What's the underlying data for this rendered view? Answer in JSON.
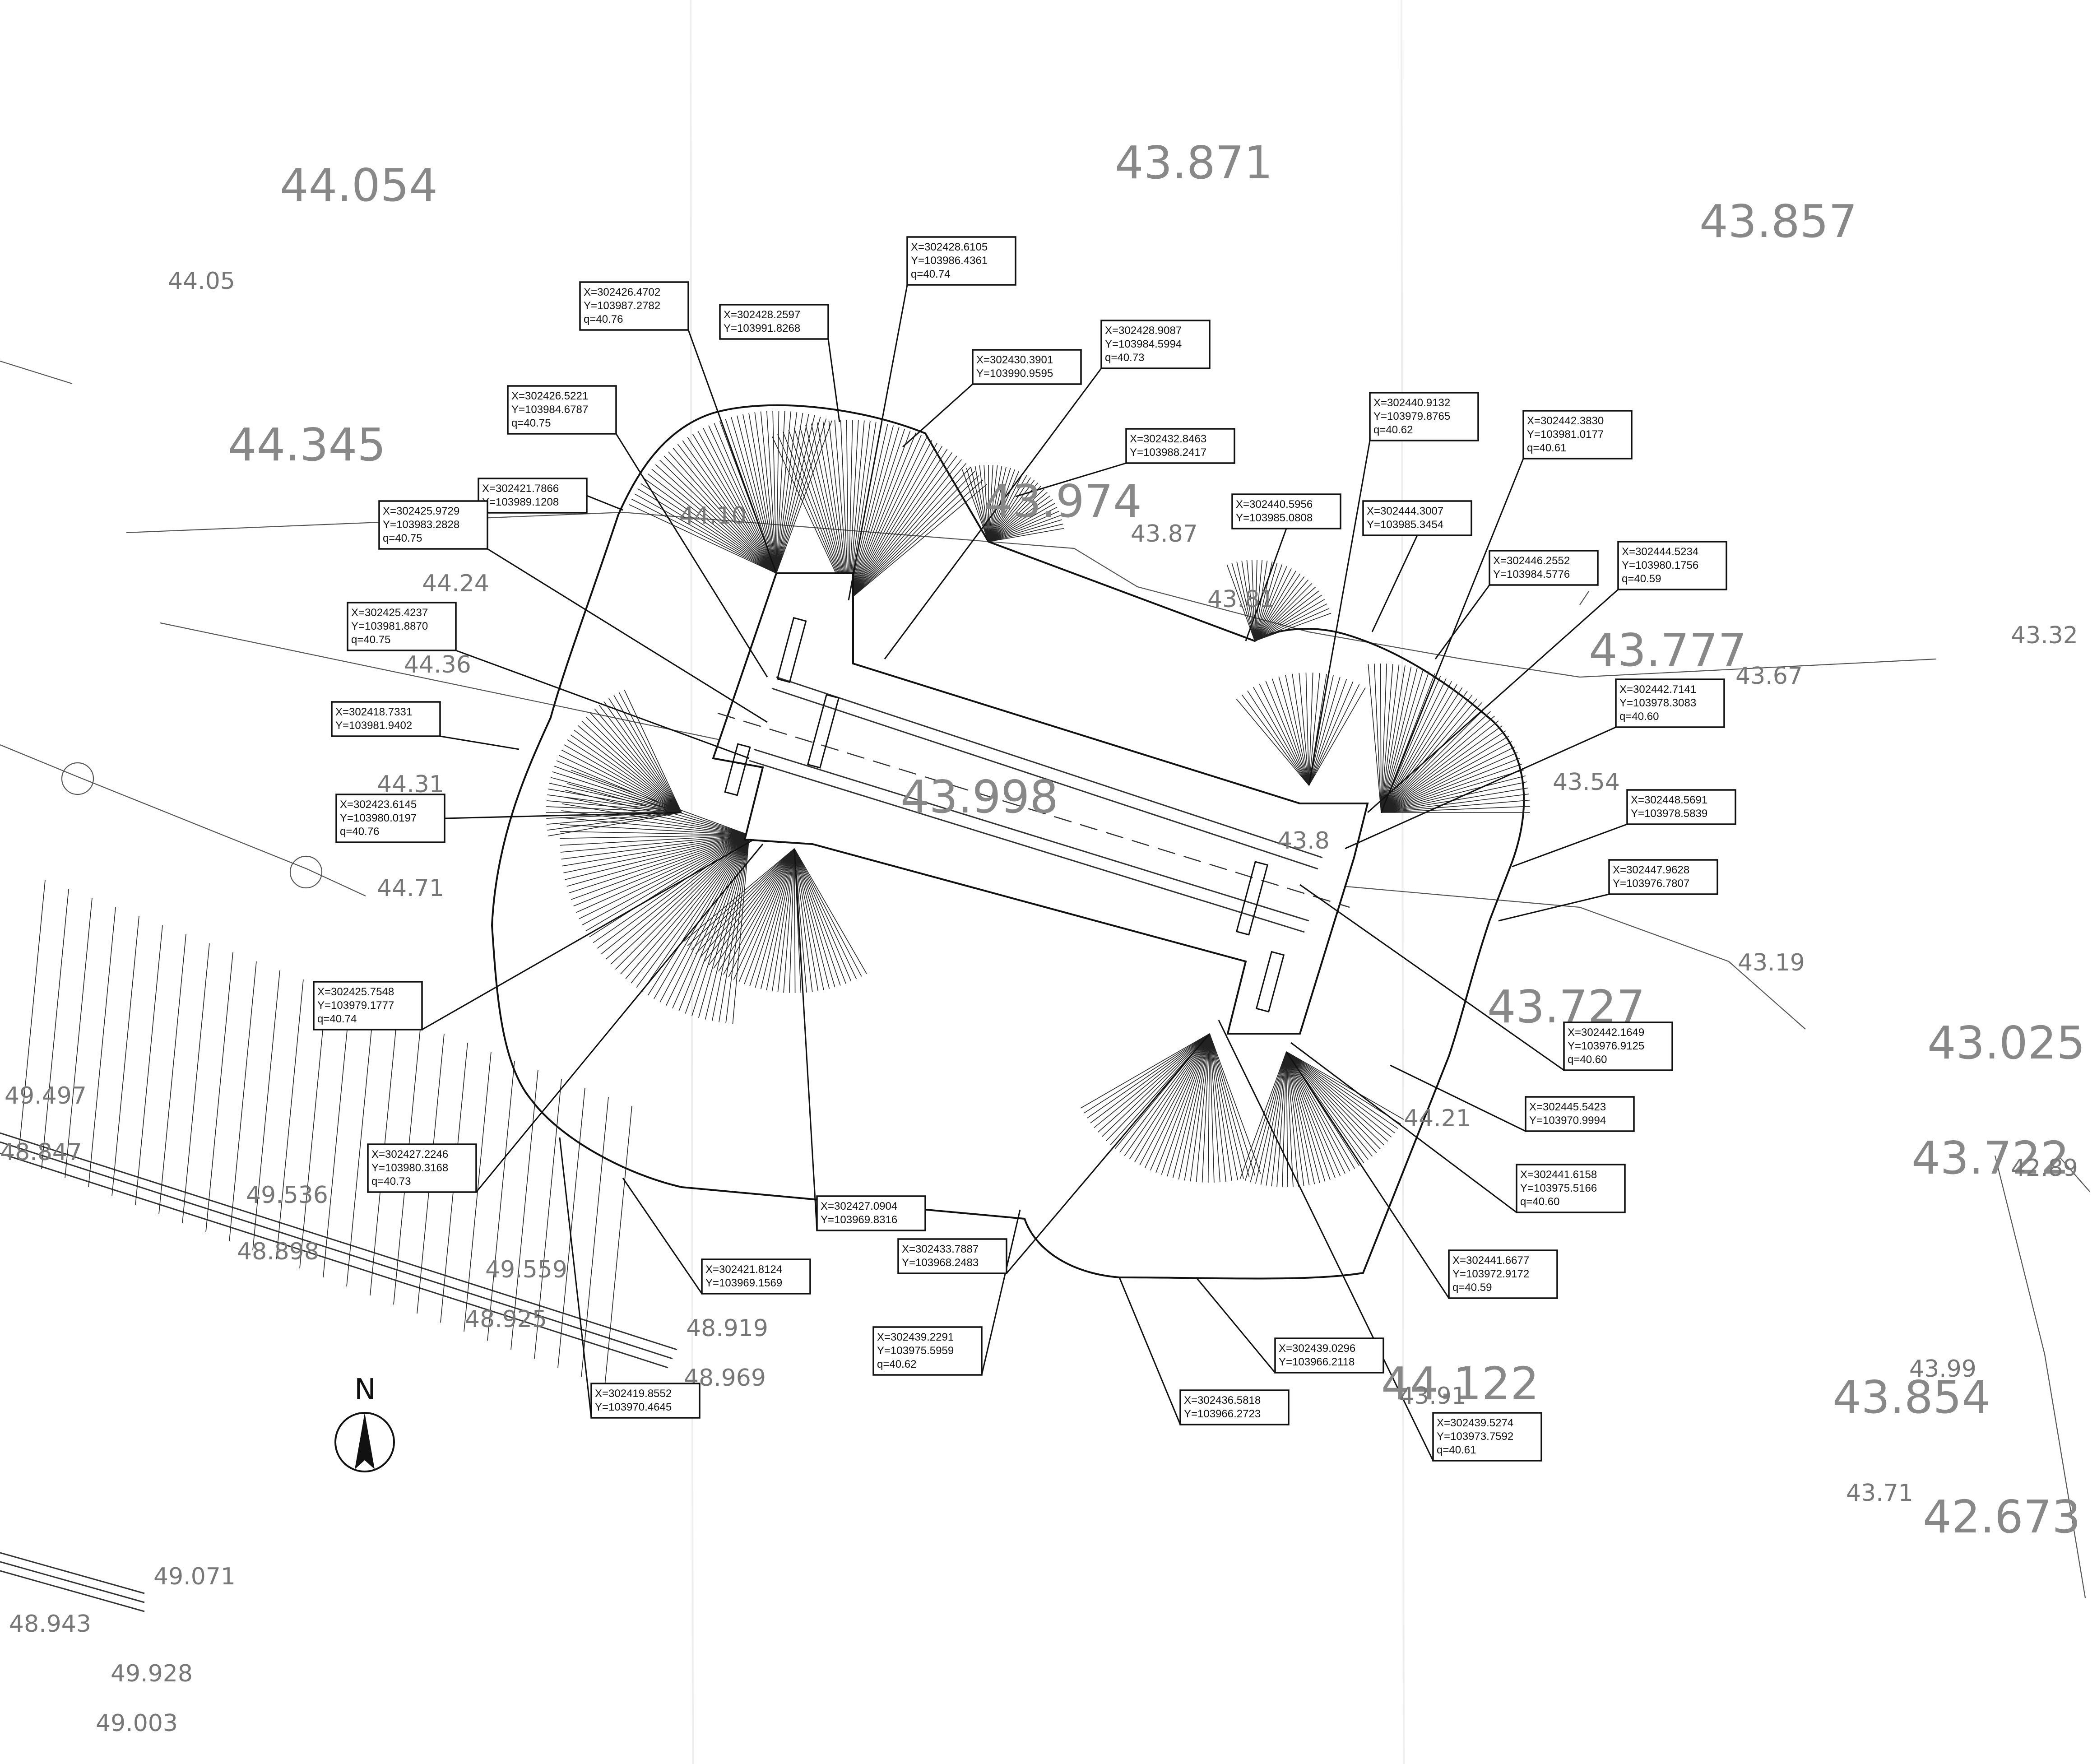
{
  "title": "",
  "colors": {
    "ink": "#111111",
    "elevation_text": "#888888",
    "spot_text": "#777777",
    "background": "#ffffff"
  },
  "north_label": "N",
  "grid_elevations": [
    {
      "id": "e1",
      "text": "44.054"
    },
    {
      "id": "e2",
      "text": "43.871"
    },
    {
      "id": "e3",
      "text": "43.857"
    },
    {
      "id": "e4",
      "text": "44.345"
    },
    {
      "id": "e5",
      "text": "43.974"
    },
    {
      "id": "e6",
      "text": "43.777"
    },
    {
      "id": "e7",
      "text": "43.998"
    },
    {
      "id": "e8",
      "text": "43.727"
    },
    {
      "id": "e9",
      "text": "43.025"
    },
    {
      "id": "e10",
      "text": "43.722"
    },
    {
      "id": "e11",
      "text": "44.122"
    },
    {
      "id": "e12",
      "text": "43.854"
    },
    {
      "id": "e13",
      "text": "42.673"
    }
  ],
  "spot_elevations": [
    {
      "id": "s1",
      "text": "44.05"
    },
    {
      "id": "s2",
      "text": "44.10"
    },
    {
      "id": "s3",
      "text": "44.24"
    },
    {
      "id": "s4",
      "text": "44.36"
    },
    {
      "id": "s5",
      "text": "44.31"
    },
    {
      "id": "s6",
      "text": "44.71"
    },
    {
      "id": "s7",
      "text": "43.87"
    },
    {
      "id": "s8",
      "text": "43.81"
    },
    {
      "id": "s9",
      "text": "43.32"
    },
    {
      "id": "s10",
      "text": "43.67"
    },
    {
      "id": "s11",
      "text": "43.54"
    },
    {
      "id": "s12",
      "text": "43.8"
    },
    {
      "id": "s13",
      "text": "43.19"
    },
    {
      "id": "s14",
      "text": "44.21"
    },
    {
      "id": "s15",
      "text": "42.89"
    },
    {
      "id": "s16",
      "text": "43.99"
    },
    {
      "id": "s17",
      "text": "43.91"
    },
    {
      "id": "s18",
      "text": "43.71"
    },
    {
      "id": "s19",
      "text": "49.497"
    },
    {
      "id": "s20",
      "text": "48.847"
    },
    {
      "id": "s21",
      "text": "49.536"
    },
    {
      "id": "s22",
      "text": "48.898"
    },
    {
      "id": "s23",
      "text": "49.559"
    },
    {
      "id": "s24",
      "text": "48.925"
    },
    {
      "id": "s25",
      "text": "48.919"
    },
    {
      "id": "s26",
      "text": "48.969"
    },
    {
      "id": "s27",
      "text": "49.071"
    },
    {
      "id": "s28",
      "text": "48.943"
    },
    {
      "id": "s29",
      "text": "49.928"
    },
    {
      "id": "s30",
      "text": "49.003"
    }
  ],
  "callouts": [
    {
      "id": "c1",
      "lines": [
        "X=302426.4702",
        "Y=103987.2782",
        "q=40.76"
      ]
    },
    {
      "id": "c2",
      "lines": [
        "X=302428.2597",
        "Y=103991.8268"
      ]
    },
    {
      "id": "c3",
      "lines": [
        "X=302428.6105",
        "Y=103986.4361",
        "q=40.74"
      ]
    },
    {
      "id": "c4",
      "lines": [
        "X=302430.3901",
        "Y=103990.9595"
      ]
    },
    {
      "id": "c5",
      "lines": [
        "X=302428.9087",
        "Y=103984.5994",
        "q=40.73"
      ]
    },
    {
      "id": "c6",
      "lines": [
        "X=302426.5221",
        "Y=103984.6787",
        "q=40.75"
      ]
    },
    {
      "id": "c7",
      "lines": [
        "X=302432.8463",
        "Y=103988.2417"
      ]
    },
    {
      "id": "c8",
      "lines": [
        "X=302421.7866",
        "Y=103989.1208"
      ]
    },
    {
      "id": "c9",
      "lines": [
        "X=302425.9729",
        "Y=103983.2828",
        "q=40.75"
      ]
    },
    {
      "id": "c10",
      "lines": [
        "X=302440.9132",
        "Y=103979.8765",
        "q=40.62"
      ]
    },
    {
      "id": "c11",
      "lines": [
        "X=302442.3830",
        "Y=103981.0177",
        "q=40.61"
      ]
    },
    {
      "id": "c12",
      "lines": [
        "X=302440.5956",
        "Y=103985.0808"
      ]
    },
    {
      "id": "c13",
      "lines": [
        "X=302444.3007",
        "Y=103985.3454"
      ]
    },
    {
      "id": "c14",
      "lines": [
        "X=302446.2552",
        "Y=103984.5776"
      ]
    },
    {
      "id": "c15",
      "lines": [
        "X=302444.5234",
        "Y=103980.1756",
        "q=40.59"
      ]
    },
    {
      "id": "c16",
      "lines": [
        "X=302425.4237",
        "Y=103981.8870",
        "q=40.75"
      ]
    },
    {
      "id": "c17",
      "lines": [
        "X=302418.7331",
        "Y=103981.9402"
      ]
    },
    {
      "id": "c18",
      "lines": [
        "X=302442.7141",
        "Y=103978.3083",
        "q=40.60"
      ]
    },
    {
      "id": "c19",
      "lines": [
        "X=302423.6145",
        "Y=103980.0197",
        "q=40.76"
      ]
    },
    {
      "id": "c20",
      "lines": [
        "X=302448.5691",
        "Y=103978.5839"
      ]
    },
    {
      "id": "c21",
      "lines": [
        "X=302447.9628",
        "Y=103976.7807"
      ]
    },
    {
      "id": "c22",
      "lines": [
        "X=302425.7548",
        "Y=103979.1777",
        "q=40.74"
      ]
    },
    {
      "id": "c23",
      "lines": [
        "X=302442.1649",
        "Y=103976.9125",
        "q=40.60"
      ]
    },
    {
      "id": "c24",
      "lines": [
        "X=302445.5423",
        "Y=103970.9994"
      ]
    },
    {
      "id": "c25",
      "lines": [
        "X=302427.2246",
        "Y=103980.3168",
        "q=40.73"
      ]
    },
    {
      "id": "c26",
      "lines": [
        "X=302441.6158",
        "Y=103975.5166",
        "q=40.60"
      ]
    },
    {
      "id": "c27",
      "lines": [
        "X=302427.0904",
        "Y=103969.8316"
      ]
    },
    {
      "id": "c28",
      "lines": [
        "X=302433.7887",
        "Y=103968.2483"
      ]
    },
    {
      "id": "c29",
      "lines": [
        "X=302421.8124",
        "Y=103969.1569"
      ]
    },
    {
      "id": "c30",
      "lines": [
        "X=302441.6677",
        "Y=103972.9172",
        "q=40.59"
      ]
    },
    {
      "id": "c31",
      "lines": [
        "X=302439.2291",
        "Y=103975.5959",
        "q=40.62"
      ]
    },
    {
      "id": "c32",
      "lines": [
        "X=302439.0296",
        "Y=103966.2118"
      ]
    },
    {
      "id": "c33",
      "lines": [
        "X=302419.8552",
        "Y=103970.4645"
      ]
    },
    {
      "id": "c34",
      "lines": [
        "X=302436.5818",
        "Y=103966.2723"
      ]
    },
    {
      "id": "c35",
      "lines": [
        "X=302439.5274",
        "Y=103973.7592",
        "q=40.61"
      ]
    }
  ]
}
